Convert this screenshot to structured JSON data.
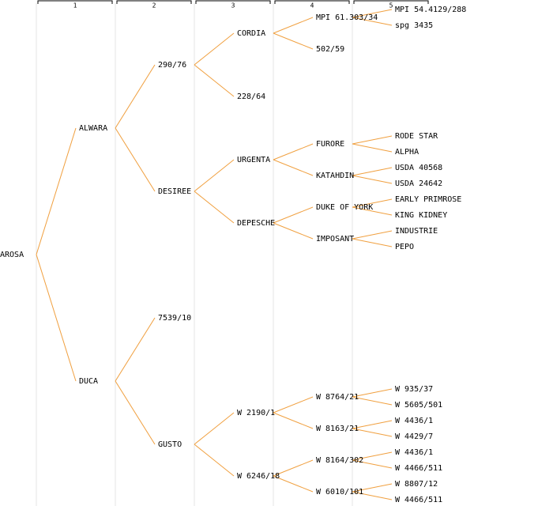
{
  "columns": [
    "1",
    "2",
    "3",
    "4",
    "5"
  ],
  "tree": {
    "label": "AROSA",
    "children": [
      {
        "label": "ALWARA",
        "children": [
          {
            "label": "290/76",
            "children": [
              {
                "label": "CORDIA",
                "color": "#0000cc",
                "children": [
                  {
                    "label": "MPI 61.303/34",
                    "children": [
                      {
                        "label": "MPI 54.4129/288"
                      },
                      {
                        "label": "spg 3435"
                      }
                    ]
                  },
                  {
                    "label": "502/59"
                  }
                ]
              },
              {
                "label": "228/64"
              }
            ]
          },
          {
            "label": "DESIREE",
            "children": [
              {
                "label": "URGENTA",
                "children": [
                  {
                    "label": "FURORE",
                    "children": [
                      {
                        "label": "RODE STAR"
                      },
                      {
                        "label": "ALPHA"
                      }
                    ]
                  },
                  {
                    "label": "KATAHDIN",
                    "children": [
                      {
                        "label": "USDA 40568"
                      },
                      {
                        "label": "USDA 24642"
                      }
                    ]
                  }
                ]
              },
              {
                "label": "DEPESCHE",
                "children": [
                  {
                    "label": "DUKE OF YORK",
                    "children": [
                      {
                        "label": "EARLY PRIMROSE"
                      },
                      {
                        "label": "KING KIDNEY"
                      }
                    ]
                  },
                  {
                    "label": "IMPOSANT",
                    "color": "#0000cc",
                    "children": [
                      {
                        "label": "INDUSTRIE"
                      },
                      {
                        "label": "PEPO"
                      }
                    ]
                  }
                ]
              }
            ]
          }
        ]
      },
      {
        "label": "DUCA",
        "children": [
          {
            "label": "7539/10"
          },
          {
            "label": "GUSTO",
            "children": [
              {
                "label": "W 2190/1",
                "children": [
                  {
                    "label": "W 8764/21",
                    "children": [
                      {
                        "label": "W 935/37"
                      },
                      {
                        "label": "W 5605/501"
                      }
                    ]
                  },
                  {
                    "label": "W 8163/21",
                    "children": [
                      {
                        "label": "W 4436/1"
                      },
                      {
                        "label": "W 4429/7"
                      }
                    ]
                  }
                ]
              },
              {
                "label": "W 6246/18",
                "children": [
                  {
                    "label": "W 8164/302",
                    "children": [
                      {
                        "label": "W 4436/1"
                      },
                      {
                        "label": "W 4466/511"
                      }
                    ]
                  },
                  {
                    "label": "W 6010/101",
                    "children": [
                      {
                        "label": "W 8807/12"
                      },
                      {
                        "label": "W 4466/511"
                      }
                    ]
                  }
                ]
              }
            ]
          }
        ]
      }
    ]
  }
}
